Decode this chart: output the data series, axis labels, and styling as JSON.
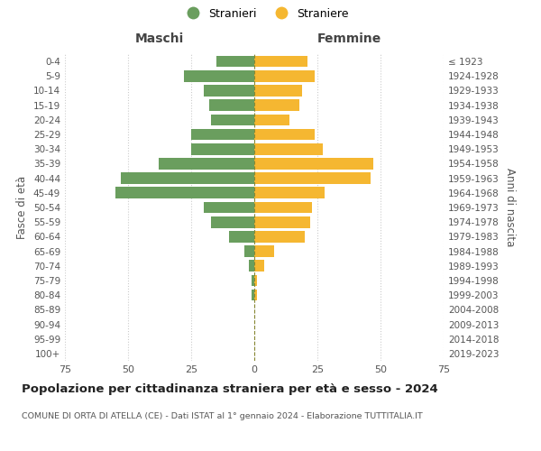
{
  "age_groups": [
    "0-4",
    "5-9",
    "10-14",
    "15-19",
    "20-24",
    "25-29",
    "30-34",
    "35-39",
    "40-44",
    "45-49",
    "50-54",
    "55-59",
    "60-64",
    "65-69",
    "70-74",
    "75-79",
    "80-84",
    "85-89",
    "90-94",
    "95-99",
    "100+"
  ],
  "birth_years": [
    "2019-2023",
    "2014-2018",
    "2009-2013",
    "2004-2008",
    "1999-2003",
    "1994-1998",
    "1989-1993",
    "1984-1988",
    "1979-1983",
    "1974-1978",
    "1969-1973",
    "1964-1968",
    "1959-1963",
    "1954-1958",
    "1949-1953",
    "1944-1948",
    "1939-1943",
    "1934-1938",
    "1929-1933",
    "1924-1928",
    "≤ 1923"
  ],
  "maschi": [
    15,
    28,
    20,
    18,
    17,
    25,
    25,
    38,
    53,
    55,
    20,
    17,
    10,
    4,
    2,
    1,
    1,
    0,
    0,
    0,
    0
  ],
  "femmine": [
    21,
    24,
    19,
    18,
    14,
    24,
    27,
    47,
    46,
    28,
    23,
    22,
    20,
    8,
    4,
    1,
    1,
    0,
    0,
    0,
    0
  ],
  "male_color": "#6a9e5e",
  "female_color": "#f5b731",
  "background_color": "#ffffff",
  "grid_color": "#cccccc",
  "title": "Popolazione per cittadinanza straniera per età e sesso - 2024",
  "subtitle": "COMUNE DI ORTA DI ATELLA (CE) - Dati ISTAT al 1° gennaio 2024 - Elaborazione TUTTITALIA.IT",
  "xlabel_left": "Maschi",
  "xlabel_right": "Femmine",
  "ylabel_left": "Fasce di età",
  "ylabel_right": "Anni di nascita",
  "legend_male": "Stranieri",
  "legend_female": "Straniere",
  "xlim": 75
}
